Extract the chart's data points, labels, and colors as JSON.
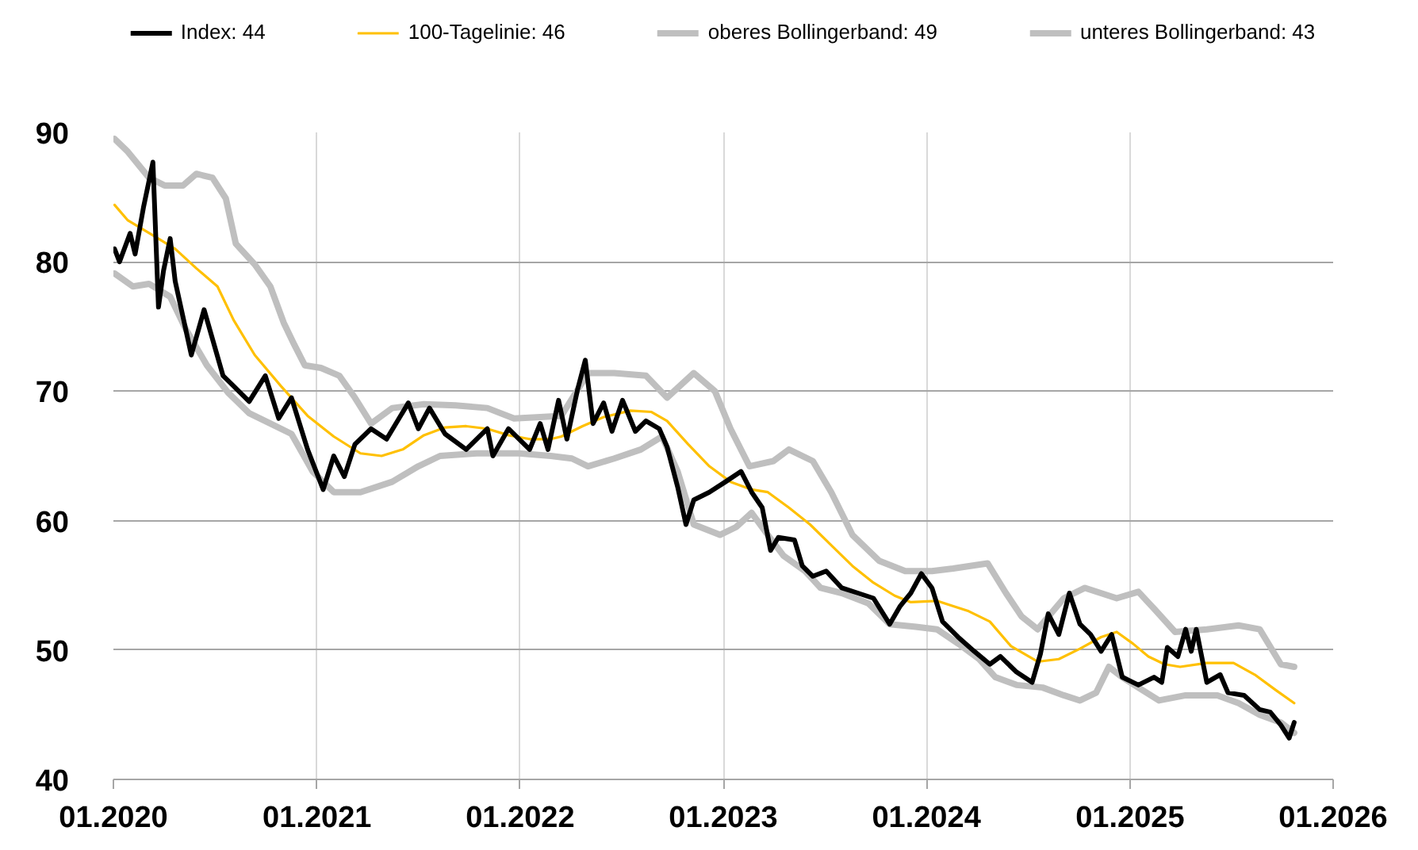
{
  "chart_data": {
    "type": "line",
    "legend": "top",
    "grid": true,
    "xlim": [
      "2020-01",
      "2026-01"
    ],
    "xticks": [
      {
        "value": "2020-01",
        "label": "01.2020"
      },
      {
        "value": "2021-01",
        "label": "01.2021"
      },
      {
        "value": "2022-01",
        "label": "01.2022"
      },
      {
        "value": "2023-01",
        "label": "01.2023"
      },
      {
        "value": "2024-01",
        "label": "01.2024"
      },
      {
        "value": "2025-01",
        "label": "01.2025"
      },
      {
        "value": "2026-01",
        "label": "01.2026"
      }
    ],
    "ylim": [
      40,
      90
    ],
    "yticks": [
      40,
      50,
      60,
      70,
      80,
      90
    ],
    "series": [
      {
        "name": "Index: 44",
        "color": "#000000",
        "x": [
          "2020-01-03",
          "2020-01-12",
          "2020-01-31",
          "2020-02-09",
          "2020-02-24",
          "2020-03-12",
          "2020-03-22",
          "2020-03-31",
          "2020-04-12",
          "2020-04-21",
          "2020-05-20",
          "2020-06-12",
          "2020-07-16",
          "2020-08-04",
          "2020-09-01",
          "2020-09-30",
          "2020-10-24",
          "2020-11-16",
          "2020-12-15",
          "2021-01-12",
          "2021-01-31",
          "2021-02-19",
          "2021-03-10",
          "2021-04-08",
          "2021-05-06",
          "2021-06-14",
          "2021-07-02",
          "2021-07-22",
          "2021-08-19",
          "2021-09-26",
          "2021-11-03",
          "2021-11-13",
          "2021-12-11",
          "2022-01-18",
          "2022-02-06",
          "2022-02-20",
          "2022-03-11",
          "2022-03-26",
          "2022-04-14",
          "2022-04-28",
          "2022-05-12",
          "2022-05-31",
          "2022-06-15",
          "2022-07-04",
          "2022-07-27",
          "2022-08-15",
          "2022-09-08",
          "2022-09-22",
          "2022-10-11",
          "2022-10-26",
          "2022-11-09",
          "2022-12-07",
          "2023-01-05",
          "2023-02-02",
          "2023-02-21",
          "2023-03-12",
          "2023-03-27",
          "2023-04-10",
          "2023-05-09",
          "2023-05-23",
          "2023-06-11",
          "2023-07-05",
          "2023-08-02",
          "2023-08-31",
          "2023-09-28",
          "2023-10-27",
          "2023-11-15",
          "2023-12-04",
          "2023-12-23",
          "2024-01-11",
          "2024-01-30",
          "2024-02-27",
          "2024-03-27",
          "2024-04-24",
          "2024-05-13",
          "2024-06-11",
          "2024-07-09",
          "2024-07-24",
          "2024-08-07",
          "2024-08-26",
          "2024-09-14",
          "2024-10-03",
          "2024-10-22",
          "2024-11-10",
          "2024-11-29",
          "2024-12-18",
          "2025-01-16",
          "2025-02-13",
          "2025-02-27",
          "2025-03-09",
          "2025-03-28",
          "2025-04-11",
          "2025-04-21",
          "2025-04-30",
          "2025-05-19",
          "2025-06-12",
          "2025-06-26",
          "2025-07-25",
          "2025-08-22",
          "2025-09-10",
          "2025-09-29",
          "2025-10-14",
          "2025-10-23"
        ],
        "values": [
          81.0,
          80.0,
          82.2,
          80.6,
          84.2,
          87.7,
          76.5,
          79.3,
          81.8,
          78.5,
          72.8,
          76.3,
          71.2,
          70.4,
          69.2,
          71.2,
          67.9,
          69.5,
          65.5,
          62.4,
          65.0,
          63.4,
          65.9,
          67.1,
          66.3,
          69.1,
          67.1,
          68.7,
          66.7,
          65.5,
          67.1,
          65.0,
          67.1,
          65.5,
          67.5,
          65.5,
          69.3,
          66.3,
          70.1,
          72.4,
          67.5,
          69.1,
          66.9,
          69.3,
          66.9,
          67.7,
          67.1,
          65.7,
          62.6,
          59.7,
          61.6,
          62.2,
          63.0,
          63.8,
          62.2,
          61.0,
          57.7,
          58.7,
          58.5,
          56.5,
          55.7,
          56.1,
          54.8,
          54.4,
          54.0,
          52.0,
          53.4,
          54.4,
          55.9,
          54.8,
          52.2,
          51.0,
          49.9,
          48.9,
          49.5,
          48.3,
          47.5,
          49.7,
          52.8,
          51.2,
          54.4,
          52.0,
          51.2,
          49.9,
          51.2,
          47.9,
          47.3,
          47.9,
          47.5,
          50.2,
          49.5,
          51.6,
          49.9,
          51.6,
          47.5,
          48.1,
          46.7,
          46.5,
          45.4,
          45.2,
          44.2,
          43.2,
          44.4
        ]
      },
      {
        "name": "100-Tagelinie: 46",
        "color": "#ffc000",
        "x": [
          "2020-01-03",
          "2020-01-27",
          "2020-03-14",
          "2020-04-21",
          "2020-05-29",
          "2020-07-06",
          "2020-08-04",
          "2020-09-11",
          "2020-10-28",
          "2020-12-15",
          "2021-01-31",
          "2021-03-20",
          "2021-04-27",
          "2021-06-04",
          "2021-07-12",
          "2021-08-19",
          "2021-09-26",
          "2021-11-03",
          "2021-12-11",
          "2022-01-18",
          "2022-02-25",
          "2022-03-16",
          "2022-04-23",
          "2022-05-31",
          "2022-07-18",
          "2022-08-25",
          "2022-09-22",
          "2022-10-30",
          "2022-12-07",
          "2023-01-14",
          "2023-02-21",
          "2023-03-22",
          "2023-04-29",
          "2023-06-06",
          "2023-07-14",
          "2023-08-21",
          "2023-09-28",
          "2023-11-05",
          "2023-12-04",
          "2024-01-20",
          "2024-03-17",
          "2024-04-24",
          "2024-06-01",
          "2024-07-19",
          "2024-08-26",
          "2024-10-03",
          "2024-11-10",
          "2024-12-08",
          "2025-01-06",
          "2025-02-03",
          "2025-03-04",
          "2025-04-01",
          "2025-05-19",
          "2025-07-06",
          "2025-08-13",
          "2025-09-20",
          "2025-10-23"
        ],
        "values": [
          84.4,
          83.2,
          82.0,
          81.0,
          79.5,
          78.1,
          75.5,
          72.8,
          70.4,
          68.1,
          66.5,
          65.2,
          65.0,
          65.5,
          66.6,
          67.2,
          67.3,
          67.1,
          66.6,
          66.3,
          66.3,
          66.5,
          67.3,
          68.0,
          68.5,
          68.4,
          67.7,
          65.9,
          64.2,
          63.0,
          62.4,
          62.2,
          61.0,
          59.7,
          58.1,
          56.5,
          55.2,
          54.2,
          53.7,
          53.8,
          53.0,
          52.2,
          50.3,
          49.1,
          49.3,
          50.1,
          51.0,
          51.4,
          50.5,
          49.5,
          48.9,
          48.7,
          49.0,
          49.0,
          48.1,
          46.9,
          45.9
        ]
      },
      {
        "name": "oberes Bollingerband: 49",
        "color": "#bfbfbf",
        "x": [
          "2020-01-03",
          "2020-01-27",
          "2020-03-05",
          "2020-04-02",
          "2020-05-05",
          "2020-05-29",
          "2020-06-27",
          "2020-07-21",
          "2020-08-08",
          "2020-09-11",
          "2020-10-09",
          "2020-11-02",
          "2020-11-21",
          "2020-12-10",
          "2021-01-08",
          "2021-02-10",
          "2021-03-10",
          "2021-04-08",
          "2021-05-16",
          "2021-07-12",
          "2021-09-07",
          "2021-11-03",
          "2021-12-21",
          "2022-02-06",
          "2022-03-16",
          "2022-05-03",
          "2022-06-19",
          "2022-08-15",
          "2022-09-22",
          "2022-11-09",
          "2022-12-17",
          "2023-01-14",
          "2023-02-17",
          "2023-04-01",
          "2023-04-29",
          "2023-06-11",
          "2023-07-14",
          "2023-08-21",
          "2023-10-08",
          "2023-11-24",
          "2024-01-11",
          "2024-02-18",
          "2024-04-20",
          "2024-05-23",
          "2024-06-20",
          "2024-07-19",
          "2024-09-04",
          "2024-10-12",
          "2024-12-08",
          "2025-01-16",
          "2025-02-13",
          "2025-03-23",
          "2025-05-19",
          "2025-07-15",
          "2025-08-22",
          "2025-09-29",
          "2025-10-23"
        ],
        "values": [
          89.5,
          88.5,
          86.5,
          85.9,
          85.9,
          86.8,
          86.5,
          84.9,
          81.4,
          79.8,
          78.1,
          75.3,
          73.6,
          72.0,
          71.8,
          71.2,
          69.5,
          67.5,
          68.7,
          69.0,
          68.9,
          68.7,
          67.9,
          68.0,
          68.1,
          71.4,
          71.4,
          71.2,
          69.5,
          71.4,
          70.0,
          67.1,
          64.2,
          64.6,
          65.5,
          64.6,
          62.2,
          58.9,
          56.9,
          56.1,
          56.1,
          56.3,
          56.7,
          54.4,
          52.6,
          51.6,
          54.0,
          54.8,
          54.0,
          54.5,
          53.2,
          51.4,
          51.6,
          51.9,
          51.6,
          48.9,
          48.7
        ]
      },
      {
        "name": "unteres Bollingerband: 43",
        "color": "#bfbfbf",
        "x": [
          "2020-01-03",
          "2020-02-05",
          "2020-03-05",
          "2020-04-12",
          "2020-05-10",
          "2020-06-17",
          "2020-07-25",
          "2020-09-01",
          "2020-10-09",
          "2020-11-16",
          "2020-12-24",
          "2021-01-31",
          "2021-03-20",
          "2021-05-16",
          "2021-07-02",
          "2021-08-10",
          "2021-10-15",
          "2021-12-30",
          "2022-02-25",
          "2022-04-04",
          "2022-05-03",
          "2022-06-19",
          "2022-08-06",
          "2022-09-13",
          "2022-10-11",
          "2022-11-09",
          "2022-12-26",
          "2023-01-24",
          "2023-02-21",
          "2023-03-22",
          "2023-04-19",
          "2023-05-28",
          "2023-06-25",
          "2023-08-02",
          "2023-09-19",
          "2023-10-27",
          "2023-12-13",
          "2024-01-20",
          "2024-02-27",
          "2024-04-05",
          "2024-05-04",
          "2024-06-11",
          "2024-07-28",
          "2024-09-04",
          "2024-10-03",
          "2024-11-01",
          "2024-11-24",
          "2024-12-18",
          "2025-01-16",
          "2025-02-22",
          "2025-04-11",
          "2025-06-07",
          "2025-07-15",
          "2025-08-22",
          "2025-09-29",
          "2025-10-23"
        ],
        "values": [
          79.1,
          78.1,
          78.3,
          77.3,
          74.8,
          72.0,
          69.9,
          68.3,
          67.5,
          66.7,
          63.8,
          62.2,
          62.2,
          63.0,
          64.2,
          65.0,
          65.2,
          65.2,
          65.0,
          64.8,
          64.2,
          64.8,
          65.5,
          66.5,
          63.8,
          59.7,
          58.9,
          59.5,
          60.6,
          58.9,
          57.3,
          56.1,
          54.8,
          54.4,
          53.6,
          52.0,
          51.8,
          51.6,
          50.5,
          49.3,
          47.9,
          47.3,
          47.1,
          46.5,
          46.1,
          46.7,
          48.7,
          47.9,
          47.1,
          46.1,
          46.5,
          46.5,
          45.9,
          45.0,
          44.4,
          43.6
        ]
      }
    ]
  }
}
